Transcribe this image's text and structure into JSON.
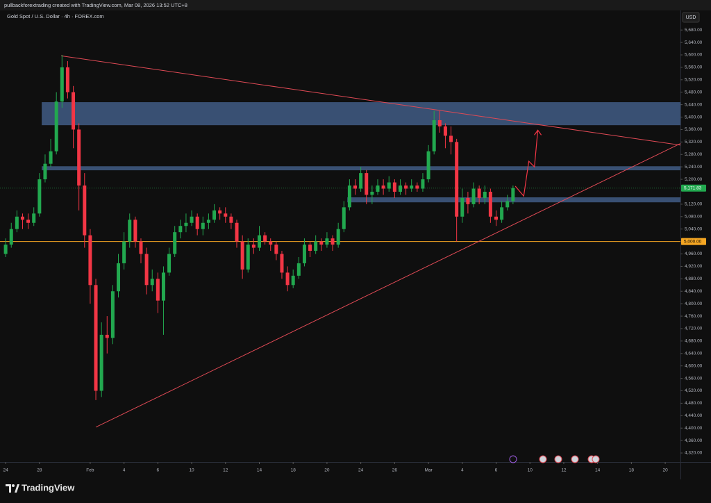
{
  "chart_data": {
    "type": "candlestick",
    "header": "pullbackforextrading created with TradingView.com, Mar 08, 2026 13:52 UTC+8",
    "title": "Gold Spot / U.S. Dollar · 4h · FOREX.com",
    "currency": "USD",
    "brand": "TradingView",
    "up_color": "#22a84f",
    "down_color": "#f23645",
    "ylim": [
      4291,
      5743
    ],
    "xlim": [
      -1,
      119.7
    ],
    "yticks": [
      {
        "value": 5680,
        "label": "5,680.00"
      },
      {
        "value": 5640,
        "label": "5,640.00"
      },
      {
        "value": 5600,
        "label": "5,600.00"
      },
      {
        "value": 5560,
        "label": "5,560.00"
      },
      {
        "value": 5520,
        "label": "5,520.00"
      },
      {
        "value": 5480,
        "label": "5,480.00"
      },
      {
        "value": 5440,
        "label": "5,440.00"
      },
      {
        "value": 5400,
        "label": "5,400.00"
      },
      {
        "value": 5360,
        "label": "5,360.00"
      },
      {
        "value": 5320,
        "label": "5,320.00"
      },
      {
        "value": 5280,
        "label": "5,280.00"
      },
      {
        "value": 5240,
        "label": "5,240.00"
      },
      {
        "value": 5200,
        "label": "5,200.00"
      },
      {
        "value": 5120,
        "label": "5,120.00"
      },
      {
        "value": 5080,
        "label": "5,080.00"
      },
      {
        "value": 5040,
        "label": "5,040.00"
      },
      {
        "value": 4960,
        "label": "4,960.00"
      },
      {
        "value": 4920,
        "label": "4,920.00"
      },
      {
        "value": 4880,
        "label": "4,880.00"
      },
      {
        "value": 4840,
        "label": "4,840.00"
      },
      {
        "value": 4800,
        "label": "4,800.00"
      },
      {
        "value": 4760,
        "label": "4,760.00"
      },
      {
        "value": 4720,
        "label": "4,720.00"
      },
      {
        "value": 4680,
        "label": "4,680.00"
      },
      {
        "value": 4640,
        "label": "4,640.00"
      },
      {
        "value": 4600,
        "label": "4,600.00"
      },
      {
        "value": 4560,
        "label": "4,560.00"
      },
      {
        "value": 4520,
        "label": "4,520.00"
      },
      {
        "value": 4480,
        "label": "4,480.00"
      },
      {
        "value": 4440,
        "label": "4,440.00"
      },
      {
        "value": 4400,
        "label": "4,400.00"
      },
      {
        "value": 4360,
        "label": "4,360.00"
      },
      {
        "value": 4320,
        "label": "4,320.00"
      }
    ],
    "xticks": [
      {
        "value": 0,
        "label": "24"
      },
      {
        "value": 6,
        "label": "28"
      },
      {
        "value": 15,
        "label": "Feb"
      },
      {
        "value": 21,
        "label": "4"
      },
      {
        "value": 27,
        "label": "6"
      },
      {
        "value": 33,
        "label": "10"
      },
      {
        "value": 39,
        "label": "12"
      },
      {
        "value": 45,
        "label": "14"
      },
      {
        "value": 51,
        "label": "18"
      },
      {
        "value": 57,
        "label": "20"
      },
      {
        "value": 63,
        "label": "24"
      },
      {
        "value": 69,
        "label": "26"
      },
      {
        "value": 75,
        "label": "Mar"
      },
      {
        "value": 81,
        "label": "4"
      },
      {
        "value": 87,
        "label": "6"
      },
      {
        "value": 93,
        "label": "10"
      },
      {
        "value": 99,
        "label": "12"
      },
      {
        "value": 105,
        "label": "14"
      },
      {
        "value": 111,
        "label": "18"
      },
      {
        "value": 117,
        "label": "20"
      }
    ],
    "ohlc": [
      [
        4960,
        5010,
        4950,
        4990
      ],
      [
        4990,
        5060,
        4980,
        5040
      ],
      [
        5040,
        5100,
        5030,
        5080
      ],
      [
        5080,
        5090,
        5040,
        5070
      ],
      [
        5070,
        5090,
        5040,
        5060
      ],
      [
        5060,
        5110,
        5050,
        5090
      ],
      [
        5090,
        5220,
        5080,
        5200
      ],
      [
        5200,
        5280,
        5190,
        5250
      ],
      [
        5250,
        5330,
        5240,
        5290
      ],
      [
        5290,
        5480,
        5280,
        5450
      ],
      [
        5450,
        5600,
        5430,
        5560
      ],
      [
        5560,
        5580,
        5460,
        5480
      ],
      [
        5480,
        5500,
        5300,
        5360
      ],
      [
        5360,
        5380,
        5100,
        5180
      ],
      [
        5180,
        5220,
        4980,
        5020
      ],
      [
        5020,
        5040,
        4800,
        4860
      ],
      [
        4860,
        4880,
        4490,
        4520
      ],
      [
        4520,
        4740,
        4500,
        4700
      ],
      [
        4700,
        4760,
        4640,
        4690
      ],
      [
        4690,
        4860,
        4670,
        4840
      ],
      [
        4840,
        4960,
        4820,
        4930
      ],
      [
        4930,
        5030,
        4910,
        5000
      ],
      [
        5000,
        5090,
        4980,
        5070
      ],
      [
        5070,
        5080,
        4980,
        5000
      ],
      [
        5000,
        5010,
        4930,
        4960
      ],
      [
        4960,
        4980,
        4830,
        4860
      ],
      [
        4860,
        4910,
        4840,
        4880
      ],
      [
        4880,
        4900,
        4770,
        4810
      ],
      [
        4810,
        4920,
        4700,
        4900
      ],
      [
        4900,
        4980,
        4890,
        4960
      ],
      [
        4960,
        5050,
        4950,
        5030
      ],
      [
        5030,
        5070,
        5010,
        5050
      ],
      [
        5050,
        5090,
        5030,
        5060
      ],
      [
        5060,
        5100,
        5050,
        5080
      ],
      [
        5080,
        5090,
        5020,
        5040
      ],
      [
        5040,
        5080,
        5020,
        5060
      ],
      [
        5060,
        5090,
        5040,
        5070
      ],
      [
        5070,
        5120,
        5060,
        5100
      ],
      [
        5100,
        5110,
        5070,
        5090
      ],
      [
        5090,
        5110,
        5060,
        5080
      ],
      [
        5080,
        5090,
        5040,
        5060
      ],
      [
        5060,
        5070,
        4980,
        5000
      ],
      [
        5000,
        5020,
        4880,
        4910
      ],
      [
        4910,
        5010,
        4900,
        4990
      ],
      [
        4990,
        5010,
        4960,
        4980
      ],
      [
        4980,
        5050,
        4970,
        5020
      ],
      [
        5020,
        5030,
        4990,
        5000
      ],
      [
        5000,
        5010,
        4970,
        4990
      ],
      [
        4990,
        5000,
        4940,
        4960
      ],
      [
        4960,
        4970,
        4880,
        4900
      ],
      [
        4900,
        4920,
        4840,
        4860
      ],
      [
        4860,
        4910,
        4850,
        4890
      ],
      [
        4890,
        4950,
        4880,
        4930
      ],
      [
        4930,
        5010,
        4920,
        4990
      ],
      [
        4990,
        5000,
        4950,
        4970
      ],
      [
        4970,
        5020,
        4960,
        5000
      ],
      [
        5000,
        5010,
        4970,
        4990
      ],
      [
        4990,
        5030,
        4980,
        5010
      ],
      [
        5010,
        5020,
        4970,
        4990
      ],
      [
        4990,
        5060,
        4980,
        5040
      ],
      [
        5040,
        5130,
        5030,
        5110
      ],
      [
        5110,
        5200,
        5100,
        5180
      ],
      [
        5180,
        5200,
        5150,
        5170
      ],
      [
        5170,
        5240,
        5160,
        5220
      ],
      [
        5220,
        5230,
        5120,
        5150
      ],
      [
        5150,
        5180,
        5120,
        5160
      ],
      [
        5160,
        5200,
        5150,
        5180
      ],
      [
        5180,
        5200,
        5150,
        5170
      ],
      [
        5170,
        5210,
        5160,
        5190
      ],
      [
        5190,
        5200,
        5140,
        5160
      ],
      [
        5160,
        5200,
        5150,
        5180
      ],
      [
        5180,
        5190,
        5150,
        5170
      ],
      [
        5170,
        5200,
        5160,
        5180
      ],
      [
        5180,
        5190,
        5160,
        5170
      ],
      [
        5170,
        5220,
        5160,
        5200
      ],
      [
        5200,
        5310,
        5190,
        5290
      ],
      [
        5290,
        5420,
        5280,
        5390
      ],
      [
        5390,
        5420,
        5350,
        5370
      ],
      [
        5370,
        5380,
        5300,
        5340
      ],
      [
        5340,
        5370,
        5280,
        5320
      ],
      [
        5320,
        5330,
        5000,
        5080
      ],
      [
        5080,
        5170,
        5060,
        5140
      ],
      [
        5140,
        5160,
        5090,
        5120
      ],
      [
        5120,
        5190,
        5110,
        5170
      ],
      [
        5170,
        5180,
        5120,
        5140
      ],
      [
        5140,
        5180,
        5120,
        5160
      ],
      [
        5160,
        5170,
        5060,
        5080
      ],
      [
        5080,
        5100,
        5050,
        5070
      ],
      [
        5070,
        5130,
        5060,
        5110
      ],
      [
        5110,
        5150,
        5100,
        5130
      ],
      [
        5130,
        5180,
        5120,
        5171.83
      ]
    ],
    "last_price": {
      "value": 5171.83,
      "label": "5,171.83",
      "color": "#22a84f"
    },
    "hline": {
      "value": 5000,
      "label": "5,000.00",
      "color": "#f5a623"
    },
    "zones": [
      {
        "from": 5374,
        "to": 5448,
        "start": 6.4,
        "color": "#4a6a9a"
      },
      {
        "from": 5229,
        "to": 5242,
        "start": 6.4,
        "color": "#4a6a9a"
      },
      {
        "from": 5126,
        "to": 5142,
        "start": 60.6,
        "color": "#4a6a9a"
      }
    ],
    "trendlines": [
      {
        "x": [
          9.84,
          119.7
        ],
        "y": [
          5597,
          5310
        ],
        "color": "#e04a55"
      },
      {
        "x": [
          16,
          119.7
        ],
        "y": [
          4403,
          5315
        ],
        "color": "#e04a55"
      }
    ],
    "projection": {
      "x": [
        90.4,
        91.9,
        92.8,
        93.8,
        94.4
      ],
      "y": [
        5178,
        5146,
        5258,
        5240,
        5358
      ],
      "color": "#f23645"
    }
  }
}
